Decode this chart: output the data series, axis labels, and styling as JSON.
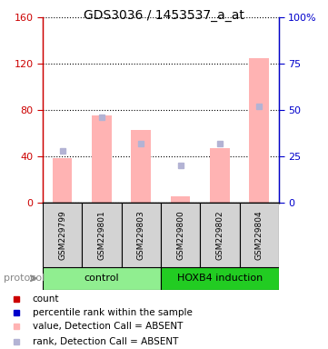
{
  "title": "GDS3036 / 1453537_a_at",
  "samples": [
    "GSM229799",
    "GSM229801",
    "GSM229803",
    "GSM229800",
    "GSM229802",
    "GSM229804"
  ],
  "values_absent": [
    38,
    75,
    63,
    5,
    47,
    125
  ],
  "ranks_absent": [
    28,
    46,
    32,
    20,
    32,
    52
  ],
  "ylim_left": [
    0,
    160
  ],
  "ylim_right": [
    0,
    100
  ],
  "yticks_left": [
    0,
    40,
    80,
    120,
    160
  ],
  "yticks_right": [
    0,
    25,
    50,
    75,
    100
  ],
  "yticklabels_left": [
    "0",
    "40",
    "80",
    "120",
    "160"
  ],
  "yticklabels_right": [
    "0",
    "25",
    "50",
    "75",
    "100%"
  ],
  "groups": [
    {
      "label": "control",
      "start": 0,
      "end": 3,
      "color": "#90ee90"
    },
    {
      "label": "HOXB4 induction",
      "start": 3,
      "end": 6,
      "color": "#22cc22"
    }
  ],
  "bar_color_absent": "#ffb3b3",
  "rank_color_absent": "#b3b3d4",
  "left_axis_color": "#cc0000",
  "right_axis_color": "#0000cc",
  "grid_color": "#000000",
  "bg_color": "#ffffff",
  "protocol_label": "protocol",
  "legend_items": [
    {
      "color": "#cc0000",
      "label": "count"
    },
    {
      "color": "#0000cc",
      "label": "percentile rank within the sample"
    },
    {
      "color": "#ffb3b3",
      "label": "value, Detection Call = ABSENT"
    },
    {
      "color": "#b3b3d4",
      "label": "rank, Detection Call = ABSENT"
    }
  ]
}
